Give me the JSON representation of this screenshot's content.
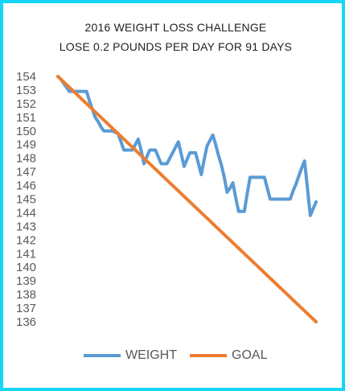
{
  "chart_data": {
    "type": "line",
    "title": "2016 WEIGHT LOSS CHALLENGE",
    "subtitle": "LOSE 0.2 POUNDS PER DAY FOR 91 DAYS",
    "xlabel": "",
    "ylabel": "",
    "ylim": [
      136,
      154
    ],
    "yticks": [
      "154",
      "153",
      "152",
      "151",
      "150",
      "149",
      "148",
      "147",
      "146",
      "145",
      "144",
      "143",
      "142",
      "141",
      "140",
      "139",
      "138",
      "137",
      "136"
    ],
    "grid": false,
    "legend_position": "bottom",
    "x": [
      0,
      1,
      2,
      3,
      4,
      5,
      6,
      7,
      8,
      9,
      10,
      11,
      12,
      13,
      14,
      15,
      16,
      17,
      18,
      19,
      20,
      21,
      22,
      23,
      24,
      25,
      26,
      27,
      28,
      29,
      30,
      31,
      32,
      33,
      34,
      35,
      36,
      37,
      38,
      39,
      40,
      41,
      42,
      43,
      44,
      45,
      46,
      47,
      48,
      49,
      50,
      51,
      52,
      53,
      54,
      55,
      56,
      57,
      58,
      59,
      60,
      61,
      62,
      63,
      64,
      65,
      66,
      67,
      68,
      69,
      70,
      71,
      72,
      73,
      74,
      75,
      76,
      77,
      78,
      79,
      80,
      81,
      82,
      83,
      84,
      85,
      86,
      87,
      88,
      89,
      90
    ],
    "series": [
      {
        "name": "WEIGHT",
        "color": "#5b9bd5",
        "values": [
          154.0,
          153.8,
          153.5,
          153.2,
          152.9,
          152.9,
          152.9,
          152.9,
          152.9,
          152.9,
          152.9,
          152.2,
          151.6,
          151.0,
          150.7,
          150.3,
          150.0,
          150.0,
          150.0,
          150.0,
          149.9,
          149.8,
          149.2,
          148.6,
          148.6,
          148.6,
          148.6,
          149.0,
          149.4,
          148.6,
          147.6,
          148.1,
          148.6,
          148.6,
          148.6,
          148.1,
          147.6,
          147.6,
          147.6,
          148.0,
          148.4,
          148.8,
          149.2,
          148.3,
          147.4,
          147.9,
          148.4,
          148.4,
          148.4,
          147.6,
          146.8,
          147.9,
          148.9,
          149.3,
          149.7,
          149.0,
          148.2,
          147.5,
          146.6,
          145.5,
          145.8,
          146.2,
          145.1,
          144.1,
          144.1,
          144.1,
          145.4,
          146.6,
          146.6,
          146.6,
          146.6,
          146.6,
          146.6,
          145.8,
          145.0,
          145.0,
          145.0,
          145.0,
          145.0,
          145.0,
          145.0,
          145.0,
          145.6,
          146.1,
          146.7,
          147.3,
          147.8,
          145.8,
          143.8,
          144.3,
          144.8
        ]
      },
      {
        "name": "GOAL",
        "color": "#ed7d31",
        "values": [
          154.0,
          153.8,
          153.6,
          153.4,
          153.2,
          153.0,
          152.8,
          152.6,
          152.4,
          152.2,
          152.0,
          151.8,
          151.6,
          151.4,
          151.2,
          151.0,
          150.8,
          150.6,
          150.4,
          150.2,
          150.0,
          149.8,
          149.6,
          149.4,
          149.2,
          149.0,
          148.8,
          148.6,
          148.4,
          148.2,
          148.0,
          147.8,
          147.6,
          147.4,
          147.2,
          147.0,
          146.8,
          146.6,
          146.4,
          146.2,
          146.0,
          145.8,
          145.6,
          145.4,
          145.2,
          145.0,
          144.8,
          144.6,
          144.4,
          144.2,
          144.0,
          143.8,
          143.6,
          143.4,
          143.2,
          143.0,
          142.8,
          142.6,
          142.4,
          142.2,
          142.0,
          141.8,
          141.6,
          141.4,
          141.2,
          141.0,
          140.8,
          140.6,
          140.4,
          140.2,
          140.0,
          139.8,
          139.6,
          139.4,
          139.2,
          139.0,
          138.8,
          138.6,
          138.4,
          138.2,
          138.0,
          137.8,
          137.6,
          137.4,
          137.2,
          137.0,
          136.8,
          136.6,
          136.4,
          136.2,
          136.0
        ]
      }
    ]
  }
}
